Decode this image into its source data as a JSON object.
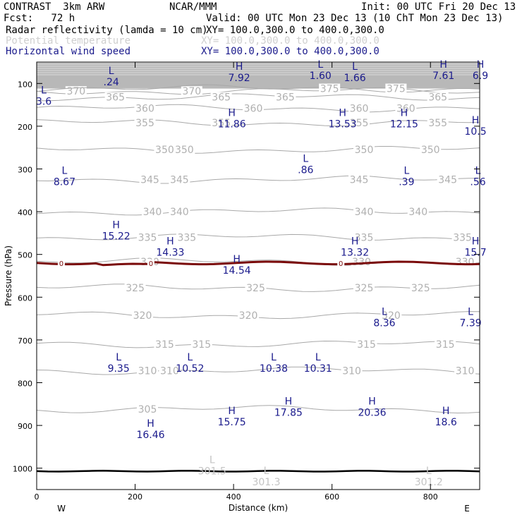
{
  "header": {
    "model": "CONTRAST  3km ARW",
    "org": "NCAR/MMM",
    "init": "Init: 00 UTC Fri 20 Dec 13",
    "fcst": "Fcst:   72 h",
    "valid": "Valid: 00 UTC Mon 23 Dec 13 (10 ChT Mon 23 Dec 13)",
    "fields": [
      {
        "name": "Radar reflectivity (lamda = 10 cm)",
        "xy": "XY= 100.0,300.0 to 400.0,300.0"
      },
      {
        "name": "Potential temperature",
        "xy": "XY= 100.0,300.0 to 400.0,300.0"
      },
      {
        "name": "Horizontal wind speed",
        "xy": "XY= 100.0,300.0 to 400.0,300.0"
      }
    ]
  },
  "chart_data": {
    "type": "cross-section",
    "xlabel": "Distance (km)",
    "ylabel": "Pressure (hPa)",
    "xlim": [
      0,
      900
    ],
    "ylim": [
      1050,
      50
    ],
    "x_ticks": [
      0,
      200,
      400,
      600,
      800
    ],
    "y_ticks": [
      100,
      200,
      300,
      400,
      500,
      600,
      700,
      800,
      900,
      1000
    ],
    "x_end_labels": {
      "left": "W",
      "right": "E"
    },
    "theta_contours": [
      {
        "value": "370",
        "p": 118,
        "labels": [
          {
            "x": 80,
            "t": "370"
          },
          {
            "x": 315,
            "t": "370"
          }
        ]
      },
      {
        "value": "365",
        "p": 132,
        "labels": [
          {
            "x": 160,
            "t": "365"
          },
          {
            "x": 375,
            "t": "365"
          },
          {
            "x": 505,
            "t": "365"
          },
          {
            "x": 815,
            "t": "365"
          }
        ]
      },
      {
        "value": "375",
        "p": 112,
        "labels": [
          {
            "x": 595,
            "t": "375"
          },
          {
            "x": 730,
            "t": "375"
          }
        ]
      },
      {
        "value": "360",
        "p": 158,
        "labels": [
          {
            "x": 220,
            "t": "360"
          },
          {
            "x": 440,
            "t": "360"
          },
          {
            "x": 655,
            "t": "360"
          },
          {
            "x": 750,
            "t": "360"
          }
        ]
      },
      {
        "value": "355",
        "p": 192,
        "labels": [
          {
            "x": 220,
            "t": "355"
          },
          {
            "x": 375,
            "t": "355"
          },
          {
            "x": 655,
            "t": "355"
          },
          {
            "x": 815,
            "t": "355"
          }
        ]
      },
      {
        "value": "350",
        "p": 255,
        "labels": [
          {
            "x": 260,
            "t": "350"
          },
          {
            "x": 300,
            "t": "350"
          },
          {
            "x": 665,
            "t": "350"
          },
          {
            "x": 800,
            "t": "350"
          }
        ]
      },
      {
        "value": "345",
        "p": 325,
        "labels": [
          {
            "x": 230,
            "t": "345"
          },
          {
            "x": 290,
            "t": "345"
          },
          {
            "x": 655,
            "t": "345"
          },
          {
            "x": 835,
            "t": "345"
          }
        ]
      },
      {
        "value": "340",
        "p": 400,
        "labels": [
          {
            "x": 235,
            "t": "340"
          },
          {
            "x": 290,
            "t": "340"
          },
          {
            "x": 665,
            "t": "340"
          },
          {
            "x": 775,
            "t": "340"
          }
        ]
      },
      {
        "value": "335",
        "p": 460,
        "labels": [
          {
            "x": 225,
            "t": "335"
          },
          {
            "x": 305,
            "t": "335"
          },
          {
            "x": 665,
            "t": "335"
          },
          {
            "x": 865,
            "t": "335"
          }
        ]
      },
      {
        "value": "330",
        "p": 517,
        "labels": [
          {
            "x": 230,
            "t": "330"
          },
          {
            "x": 660,
            "t": "330"
          },
          {
            "x": 870,
            "t": "330"
          }
        ]
      },
      {
        "value": "325",
        "p": 578,
        "labels": [
          {
            "x": 445,
            "t": "325"
          },
          {
            "x": 665,
            "t": "325"
          },
          {
            "x": 780,
            "t": "325"
          },
          {
            "x": 200,
            "t": "325"
          }
        ]
      },
      {
        "value": "320",
        "p": 642,
        "labels": [
          {
            "x": 215,
            "t": "320"
          },
          {
            "x": 430,
            "t": "320"
          },
          {
            "x": 720,
            "t": "320"
          }
        ]
      },
      {
        "value": "315",
        "p": 710,
        "labels": [
          {
            "x": 260,
            "t": "315"
          },
          {
            "x": 335,
            "t": "315"
          },
          {
            "x": 670,
            "t": "315"
          },
          {
            "x": 830,
            "t": "315"
          }
        ]
      },
      {
        "value": "310",
        "p": 772,
        "labels": [
          {
            "x": 225,
            "t": "310"
          },
          {
            "x": 270,
            "t": "310"
          },
          {
            "x": 640,
            "t": "310"
          },
          {
            "x": 870,
            "t": "310"
          }
        ]
      },
      {
        "value": "305",
        "p": 862,
        "labels": [
          {
            "x": 225,
            "t": "305"
          }
        ]
      }
    ],
    "reflectivity_contour": {
      "value": "0",
      "p": 520,
      "labels": [
        {
          "x": 50,
          "t": "0"
        },
        {
          "x": 232,
          "t": "0"
        },
        {
          "x": 618,
          "t": "0"
        }
      ]
    },
    "surface_p": 1007,
    "wind_extrema": [
      {
        "type": "L",
        "x": 140,
        "p": 85,
        "value": ".24"
      },
      {
        "type": "H",
        "x": 400,
        "p": 75,
        "value": "7.92"
      },
      {
        "type": "L",
        "x": 565,
        "p": 70,
        "value": "1.60"
      },
      {
        "type": "L",
        "x": 635,
        "p": 75,
        "value": "1.66"
      },
      {
        "type": "H",
        "x": 815,
        "p": 70,
        "value": "7.61"
      },
      {
        "type": "H",
        "x": 890,
        "p": 70,
        "value": "6.9"
      },
      {
        "type": "L",
        "x": 3,
        "p": 130,
        "value": "3.6"
      },
      {
        "type": "H",
        "x": 385,
        "p": 183,
        "value": "11.86"
      },
      {
        "type": "H",
        "x": 610,
        "p": 183,
        "value": "13.53"
      },
      {
        "type": "H",
        "x": 735,
        "p": 183,
        "value": "12.15"
      },
      {
        "type": "H",
        "x": 880,
        "p": 200,
        "value": "10.5"
      },
      {
        "type": "L",
        "x": 45,
        "p": 318,
        "value": "8.67"
      },
      {
        "type": "L",
        "x": 535,
        "p": 290,
        "value": ".86"
      },
      {
        "type": "L",
        "x": 740,
        "p": 318,
        "value": ".39"
      },
      {
        "type": "L",
        "x": 885,
        "p": 318,
        "value": ".56"
      },
      {
        "type": "H",
        "x": 150,
        "p": 445,
        "value": "15.22"
      },
      {
        "type": "H",
        "x": 260,
        "p": 483,
        "value": "14.33"
      },
      {
        "type": "H",
        "x": 395,
        "p": 525,
        "value": "14.54"
      },
      {
        "type": "H",
        "x": 635,
        "p": 483,
        "value": "13.32"
      },
      {
        "type": "H",
        "x": 880,
        "p": 483,
        "value": "15.7"
      },
      {
        "type": "L",
        "x": 695,
        "p": 648,
        "value": "8.36"
      },
      {
        "type": "L",
        "x": 870,
        "p": 648,
        "value": "7.39"
      },
      {
        "type": "L",
        "x": 155,
        "p": 755,
        "value": "9.35"
      },
      {
        "type": "L",
        "x": 300,
        "p": 755,
        "value": "10.52"
      },
      {
        "type": "L",
        "x": 470,
        "p": 755,
        "value": "10.38"
      },
      {
        "type": "L",
        "x": 560,
        "p": 755,
        "value": "10.31"
      },
      {
        "type": "H",
        "x": 500,
        "p": 858,
        "value": "17.85"
      },
      {
        "type": "H",
        "x": 670,
        "p": 858,
        "value": "20.36"
      },
      {
        "type": "H",
        "x": 385,
        "p": 880,
        "value": "15.75"
      },
      {
        "type": "H",
        "x": 820,
        "p": 880,
        "value": "18.6"
      },
      {
        "type": "H",
        "x": 220,
        "p": 910,
        "value": "16.46"
      },
      {
        "type": "L",
        "x": 345,
        "p": 995,
        "value": "301.5"
      },
      {
        "type": "L",
        "x": 455,
        "p": 1020,
        "value": "301.3"
      },
      {
        "type": "L",
        "x": 785,
        "p": 1020,
        "value": "301.2"
      }
    ],
    "colors": {
      "theta": "#a8a8a8",
      "theta_label": "#b0b0b0",
      "upper_fill": "#b8b8b8",
      "wind": "#1a1a8c",
      "reflectivity": "#7a0a0a",
      "surface": "#000000"
    }
  }
}
